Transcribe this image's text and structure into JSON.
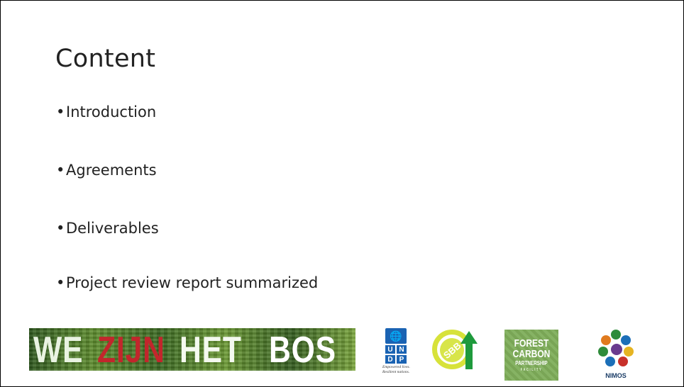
{
  "slide": {
    "title": "Content",
    "bullets": [
      "Introduction",
      "Agreements",
      "Deliverables",
      "Project review report summarized"
    ],
    "bullet_symbol": "•"
  },
  "logos": {
    "we_zijn_het_bos": {
      "we": "WE",
      "zijn": "ZIJN",
      "het": "HET",
      "bos": "BOS"
    },
    "undp": {
      "letters": [
        "U",
        "N",
        "D",
        "P"
      ],
      "tagline": "Empowered lives. Resilient nations."
    },
    "sbb": {
      "text": "SBB"
    },
    "fcpf": {
      "line1": "FOREST",
      "line2": "CARBON",
      "line3": "PARTNERSHIP",
      "line4": "FACILITY"
    },
    "nimos": {
      "text": "NIMOS"
    }
  },
  "colors": {
    "wzhb_red": "#c2262c",
    "undp_blue": "#1a63b3",
    "sbb_green": "#1e9a3c",
    "sbb_yellow": "#d7e23a",
    "fcpf_green": "#7fae5a",
    "nimos_blue": "#1a3c66"
  }
}
